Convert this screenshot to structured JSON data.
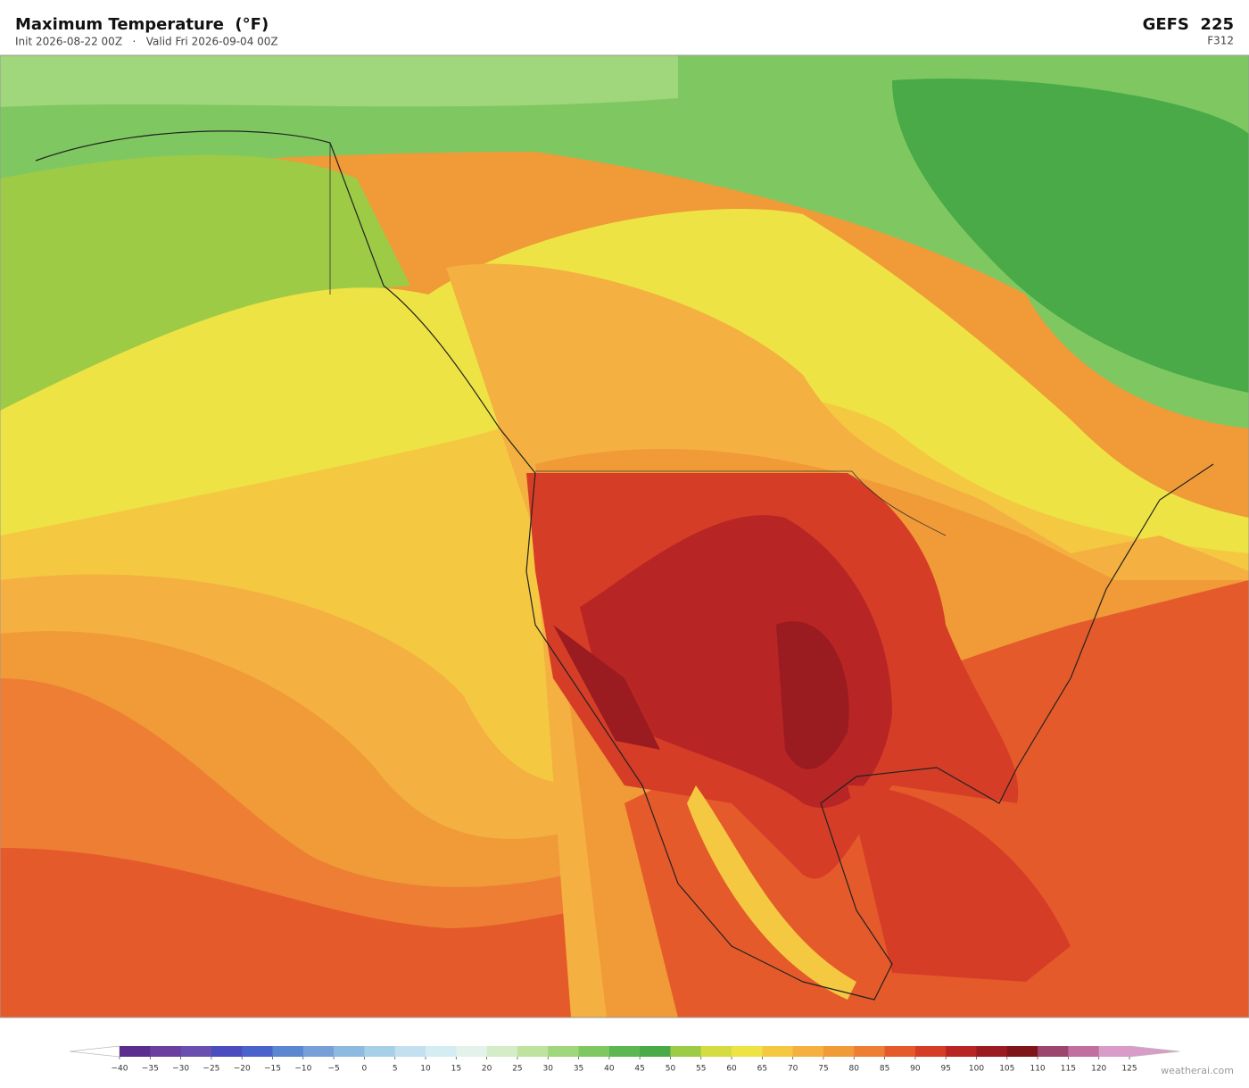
{
  "header": {
    "title": "Maximum Temperature  (°F)",
    "subtitle": "Init 2026-08-22 00Z   ·   Valid Fri 2026-09-04 00Z",
    "model": "GEFS  225",
    "forecast_hour": "F312"
  },
  "colorbar": {
    "ticks": [
      {
        "value": -40,
        "label": "−40"
      },
      {
        "value": -35,
        "label": "−35"
      },
      {
        "value": -30,
        "label": "−30"
      },
      {
        "value": -25,
        "label": "−25"
      },
      {
        "value": -20,
        "label": "−20"
      },
      {
        "value": -15,
        "label": "−15"
      },
      {
        "value": -10,
        "label": "−10"
      },
      {
        "value": -5,
        "label": "−5"
      },
      0,
      5,
      10,
      15,
      20,
      25,
      30,
      35,
      40,
      45,
      50,
      55,
      60,
      65,
      70,
      75,
      80,
      85,
      90,
      95,
      100,
      105,
      110,
      115,
      120,
      125
    ],
    "colors": [
      "#5b2d8e",
      "#6b3fa0",
      "#6a4fb0",
      "#4b4cbf",
      "#4a63cc",
      "#5b86d0",
      "#77a0d8",
      "#8dbbe0",
      "#a7d0e8",
      "#c2e0ef",
      "#d6ecf3",
      "#e3f2ea",
      "#d4ecc8",
      "#bfe29e",
      "#a0d67c",
      "#7fc861",
      "#5cb752",
      "#4aaa48",
      "#9ecb46",
      "#d4dc42",
      "#eee345",
      "#f5c842",
      "#f4b040",
      "#f09a38",
      "#ed7e33",
      "#e55a2b",
      "#d63d27",
      "#b82525",
      "#9a1b20",
      "#7e1619",
      "#9c466f",
      "#c06fa0",
      "#d99cc8"
    ],
    "under_color": "#ffffff",
    "over_color": "#d99cc8"
  },
  "watermark": "weatherai.com"
}
